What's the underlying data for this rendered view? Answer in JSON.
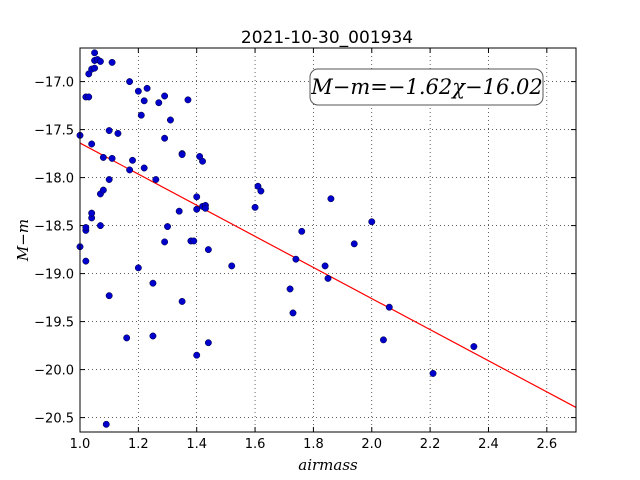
{
  "chart_data": {
    "type": "scatter",
    "title": "2021-10-30_001934",
    "xlabel": "airmass",
    "ylabel": "M−m",
    "xlim": [
      1.0,
      2.7
    ],
    "ylim": [
      -20.65,
      -16.65
    ],
    "y_inverted": true,
    "grid": true,
    "x_ticks": [
      1.0,
      1.2,
      1.4,
      1.6,
      1.8,
      2.0,
      2.2,
      2.4,
      2.6
    ],
    "x_tick_labels": [
      "1.0",
      "1.2",
      "1.4",
      "1.6",
      "1.8",
      "2.0",
      "2.2",
      "2.4",
      "2.6"
    ],
    "y_ticks": [
      -17.0,
      -17.5,
      -18.0,
      -18.5,
      -19.0,
      -19.5,
      -20.0,
      -20.5
    ],
    "y_tick_labels": [
      "−17.0",
      "−17.5",
      "−18.0",
      "−18.5",
      "−19.0",
      "−19.5",
      "−20.0",
      "−20.5"
    ],
    "annotation": "M−m=−1.62χ−16.02",
    "fit": {
      "slope": -1.62,
      "intercept": -16.02,
      "x_range": [
        1.0,
        2.7
      ],
      "color": "#ff0000"
    },
    "point_color": "#0000cc",
    "points": [
      [
        1.0,
        -17.56
      ],
      [
        1.0,
        -18.72
      ],
      [
        1.02,
        -18.87
      ],
      [
        1.02,
        -18.55
      ],
      [
        1.02,
        -18.52
      ],
      [
        1.02,
        -17.16
      ],
      [
        1.03,
        -17.16
      ],
      [
        1.03,
        -16.92
      ],
      [
        1.04,
        -17.65
      ],
      [
        1.04,
        -16.87
      ],
      [
        1.04,
        -18.42
      ],
      [
        1.04,
        -18.37
      ],
      [
        1.05,
        -16.86
      ],
      [
        1.05,
        -16.78
      ],
      [
        1.05,
        -16.7
      ],
      [
        1.06,
        -16.77
      ],
      [
        1.07,
        -16.79
      ],
      [
        1.07,
        -18.5
      ],
      [
        1.07,
        -18.17
      ],
      [
        1.08,
        -17.79
      ],
      [
        1.08,
        -18.13
      ],
      [
        1.09,
        -20.57
      ],
      [
        1.1,
        -17.51
      ],
      [
        1.1,
        -18.02
      ],
      [
        1.1,
        -19.23
      ],
      [
        1.11,
        -17.8
      ],
      [
        1.11,
        -16.8
      ],
      [
        1.13,
        -17.54
      ],
      [
        1.16,
        -19.67
      ],
      [
        1.17,
        -17.0
      ],
      [
        1.17,
        -17.92
      ],
      [
        1.18,
        -17.82
      ],
      [
        1.2,
        -18.94
      ],
      [
        1.2,
        -17.1
      ],
      [
        1.21,
        -17.35
      ],
      [
        1.22,
        -17.2
      ],
      [
        1.22,
        -17.9
      ],
      [
        1.23,
        -17.07
      ],
      [
        1.25,
        -19.1
      ],
      [
        1.26,
        -18.02
      ],
      [
        1.27,
        -17.22
      ],
      [
        1.29,
        -17.59
      ],
      [
        1.29,
        -18.67
      ],
      [
        1.29,
        -17.15
      ],
      [
        1.3,
        -18.51
      ],
      [
        1.31,
        -17.4
      ],
      [
        1.34,
        -18.35
      ],
      [
        1.35,
        -19.29
      ],
      [
        1.35,
        -17.75
      ],
      [
        1.35,
        -17.76
      ],
      [
        1.37,
        -17.19
      ],
      [
        1.38,
        -18.66
      ],
      [
        1.39,
        -18.66
      ],
      [
        1.4,
        -18.2
      ],
      [
        1.4,
        -18.33
      ],
      [
        1.41,
        -17.78
      ],
      [
        1.42,
        -18.3
      ],
      [
        1.42,
        -17.83
      ],
      [
        1.43,
        -18.29
      ],
      [
        1.43,
        -18.32
      ],
      [
        1.44,
        -18.75
      ],
      [
        1.44,
        -19.72
      ],
      [
        1.4,
        -19.85
      ],
      [
        1.52,
        -18.92
      ],
      [
        1.6,
        -18.31
      ],
      [
        1.61,
        -18.09
      ],
      [
        1.62,
        -18.14
      ],
      [
        1.72,
        -19.16
      ],
      [
        1.73,
        -19.41
      ],
      [
        1.74,
        -18.85
      ],
      [
        1.76,
        -18.56
      ],
      [
        1.84,
        -18.92
      ],
      [
        1.85,
        -19.05
      ],
      [
        1.86,
        -18.22
      ],
      [
        1.94,
        -18.69
      ],
      [
        2.0,
        -18.46
      ],
      [
        2.04,
        -19.69
      ],
      [
        2.06,
        -19.35
      ],
      [
        2.21,
        -20.04
      ],
      [
        2.35,
        -19.76
      ],
      [
        1.25,
        -19.65
      ]
    ]
  }
}
